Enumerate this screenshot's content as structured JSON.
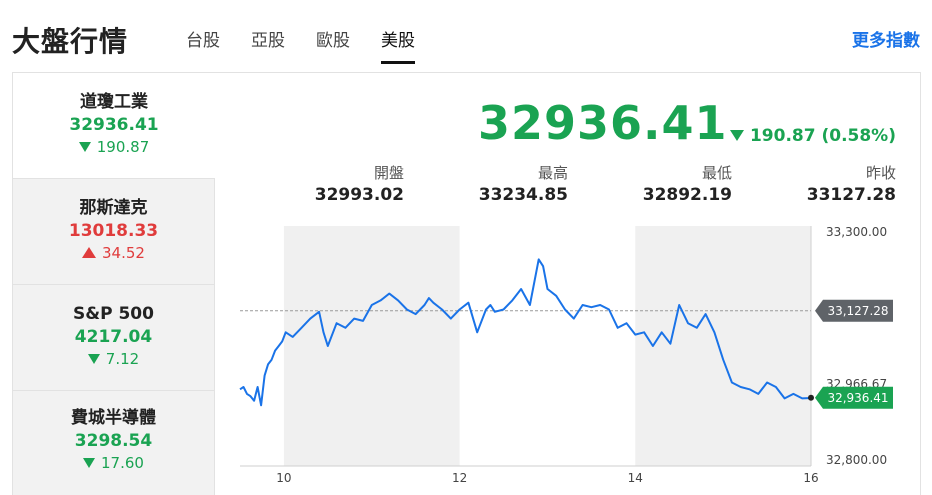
{
  "header": {
    "title": "大盤行情",
    "tabs": [
      {
        "label": "台股",
        "active": false
      },
      {
        "label": "亞股",
        "active": false
      },
      {
        "label": "歐股",
        "active": false
      },
      {
        "label": "美股",
        "active": true
      }
    ],
    "more_link": "更多指數"
  },
  "sidebar": {
    "items": [
      {
        "name": "道瓊工業",
        "value": "32936.41",
        "change": "190.87",
        "direction": "down",
        "active": true
      },
      {
        "name": "那斯達克",
        "value": "13018.33",
        "change": "34.52",
        "direction": "up",
        "active": false
      },
      {
        "name": "S&P 500",
        "value": "4217.04",
        "change": "7.12",
        "direction": "down",
        "active": false
      },
      {
        "name": "費城半導體",
        "value": "3298.54",
        "change": "17.60",
        "direction": "down",
        "active": false
      }
    ]
  },
  "quote": {
    "value": "32936.41",
    "change": "190.87 (0.58%)",
    "direction": "down",
    "stats": [
      {
        "label": "開盤",
        "value": "32993.02"
      },
      {
        "label": "最高",
        "value": "33234.85"
      },
      {
        "label": "最低",
        "value": "32892.19"
      },
      {
        "label": "昨收",
        "value": "33127.28"
      }
    ]
  },
  "colors": {
    "up": "#e03c3c",
    "down": "#1aa352",
    "line": "#1a73e8",
    "prev_close_tag": "#5f6368"
  },
  "chart_data": {
    "type": "line",
    "x_ticks": [
      "10",
      "12",
      "14",
      "16"
    ],
    "y_ticks": [
      "33,300.00",
      "32,966.67",
      "32,800.00"
    ],
    "ylim": [
      32800,
      33300
    ],
    "xlim": [
      9.5,
      16
    ],
    "prev_close": {
      "value": 33127.28,
      "label": "33,127.28"
    },
    "last": {
      "value": 32936.41,
      "label": "32,936.41"
    },
    "series": [
      {
        "x": [
          9.5,
          9.54,
          9.58,
          9.62,
          9.66,
          9.7,
          9.74,
          9.78,
          9.82,
          9.86,
          9.9,
          9.94,
          9.98,
          10.02,
          10.1,
          10.2,
          10.3,
          10.4,
          10.45,
          10.5,
          10.6,
          10.7,
          10.8,
          10.9,
          11.0,
          11.1,
          11.2,
          11.3,
          11.4,
          11.5,
          11.6,
          11.65,
          11.7,
          11.8,
          11.9,
          12.0,
          12.1,
          12.2,
          12.3,
          12.35,
          12.4,
          12.5,
          12.6,
          12.7,
          12.8,
          12.9,
          12.95,
          13.0,
          13.1,
          13.2,
          13.3,
          13.4,
          13.5,
          13.6,
          13.7,
          13.8,
          13.9,
          14.0,
          14.1,
          14.2,
          14.3,
          14.4,
          14.5,
          14.6,
          14.7,
          14.8,
          14.9,
          15.0,
          15.1,
          15.2,
          15.3,
          15.4,
          15.5,
          15.6,
          15.7,
          15.8,
          15.9,
          16.0
        ],
        "y": [
          32955,
          32960,
          32945,
          32940,
          32930,
          32960,
          32920,
          32985,
          33010,
          33020,
          33040,
          33050,
          33060,
          33080,
          33070,
          33090,
          33110,
          33125,
          33080,
          33050,
          33100,
          33090,
          33110,
          33105,
          33140,
          33150,
          33165,
          33150,
          33130,
          33120,
          33140,
          33155,
          33145,
          33130,
          33110,
          33130,
          33145,
          33080,
          33130,
          33140,
          33125,
          33130,
          33150,
          33175,
          33140,
          33240,
          33225,
          33175,
          33160,
          33130,
          33110,
          33140,
          33135,
          33140,
          33130,
          33090,
          33100,
          33075,
          33080,
          33050,
          33080,
          33055,
          33140,
          33100,
          33090,
          33120,
          33080,
          33020,
          32970,
          32960,
          32955,
          32945,
          32970,
          32960,
          32935,
          32945,
          32935,
          32936
        ]
      }
    ]
  }
}
